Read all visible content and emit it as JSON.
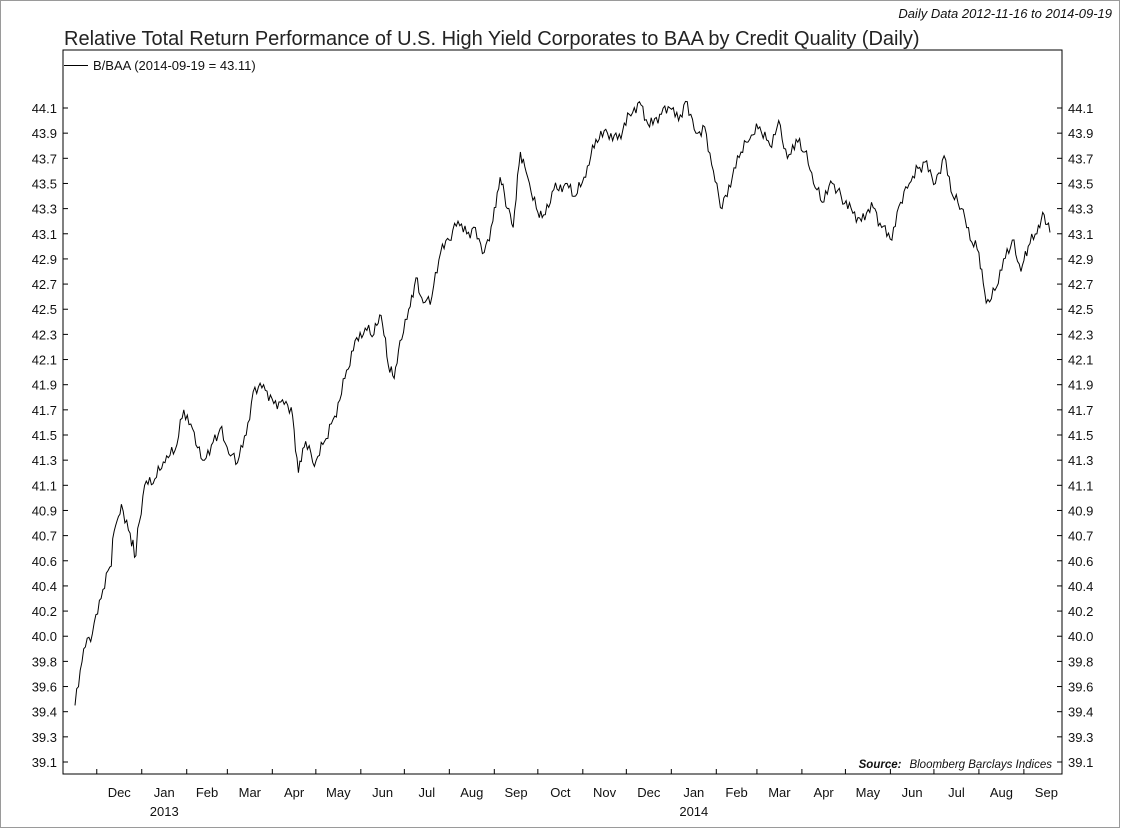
{
  "header": {
    "subtitle": "Daily Data 2012-11-16 to 2014-09-19",
    "title": "Relative Total Return Performance of U.S. High Yield Corporates to BAA by Credit Quality (Daily)"
  },
  "legend": {
    "label": "B/BAA (2014-09-19 = 43.11)"
  },
  "source": {
    "label": "Source:",
    "text": "Bloomberg Barclays Indices"
  },
  "chart_data": {
    "type": "line",
    "title": "Relative Total Return Performance of U.S. High Yield Corporates to BAA by Credit Quality (Daily)",
    "x_range": [
      "2012-11-16",
      "2014-09-19"
    ],
    "ylim": [
      39.05,
      44.25
    ],
    "y_ticks": [
      "44.1",
      "43.9",
      "43.7",
      "43.5",
      "43.3",
      "43.1",
      "42.9",
      "42.7",
      "42.5",
      "42.3",
      "42.1",
      "41.9",
      "41.7",
      "41.5",
      "41.3",
      "41.1",
      "40.9",
      "40.7",
      "40.6",
      "40.4",
      "40.2",
      "40.0",
      "39.8",
      "39.6",
      "39.4",
      "39.3",
      "39.1"
    ],
    "x_ticks": [
      {
        "label": "Dec",
        "date": "2012-12-01"
      },
      {
        "label": "Jan",
        "date": "2013-01-01"
      },
      {
        "label": "Feb",
        "date": "2013-02-01"
      },
      {
        "label": "Mar",
        "date": "2013-03-01"
      },
      {
        "label": "Apr",
        "date": "2013-04-01"
      },
      {
        "label": "May",
        "date": "2013-05-01"
      },
      {
        "label": "Jun",
        "date": "2013-06-01"
      },
      {
        "label": "Jul",
        "date": "2013-07-01"
      },
      {
        "label": "Aug",
        "date": "2013-08-01"
      },
      {
        "label": "Sep",
        "date": "2013-09-01"
      },
      {
        "label": "Oct",
        "date": "2013-10-01"
      },
      {
        "label": "Nov",
        "date": "2013-11-01"
      },
      {
        "label": "Dec",
        "date": "2013-12-01"
      },
      {
        "label": "Jan",
        "date": "2014-01-01"
      },
      {
        "label": "Feb",
        "date": "2014-02-01"
      },
      {
        "label": "Mar",
        "date": "2014-03-01"
      },
      {
        "label": "Apr",
        "date": "2014-04-01"
      },
      {
        "label": "May",
        "date": "2014-05-01"
      },
      {
        "label": "Jun",
        "date": "2014-06-01"
      },
      {
        "label": "Jul",
        "date": "2014-07-01"
      },
      {
        "label": "Aug",
        "date": "2014-08-01"
      },
      {
        "label": "Sep",
        "date": "2014-09-01"
      }
    ],
    "year_labels": [
      {
        "label": "2013",
        "date": "2013-01-01"
      },
      {
        "label": "2014",
        "date": "2014-01-01"
      }
    ],
    "grid": false,
    "legend_position": "top-left",
    "series": [
      {
        "name": "B/BAA (2014-09-19 = 43.11)",
        "color": "#000000",
        "points": [
          [
            "2012-11-16",
            39.45
          ],
          [
            "2012-11-22",
            39.9
          ],
          [
            "2012-11-28",
            40.02
          ],
          [
            "2012-12-04",
            40.3
          ],
          [
            "2012-12-10",
            40.55
          ],
          [
            "2012-12-14",
            40.78
          ],
          [
            "2012-12-18",
            40.95
          ],
          [
            "2012-12-24",
            40.72
          ],
          [
            "2012-12-28",
            40.62
          ],
          [
            "2013-01-03",
            41.1
          ],
          [
            "2013-01-10",
            41.15
          ],
          [
            "2013-01-17",
            41.28
          ],
          [
            "2013-01-24",
            41.38
          ],
          [
            "2013-01-30",
            41.7
          ],
          [
            "2013-02-05",
            41.55
          ],
          [
            "2013-02-12",
            41.3
          ],
          [
            "2013-02-18",
            41.42
          ],
          [
            "2013-02-24",
            41.55
          ],
          [
            "2013-03-02",
            41.35
          ],
          [
            "2013-03-08",
            41.28
          ],
          [
            "2013-03-14",
            41.5
          ],
          [
            "2013-03-20",
            41.88
          ],
          [
            "2013-03-26",
            41.9
          ],
          [
            "2013-04-02",
            41.75
          ],
          [
            "2013-04-08",
            41.78
          ],
          [
            "2013-04-14",
            41.72
          ],
          [
            "2013-04-19",
            41.2
          ],
          [
            "2013-04-24",
            41.45
          ],
          [
            "2013-04-30",
            41.25
          ],
          [
            "2013-05-07",
            41.45
          ],
          [
            "2013-05-14",
            41.65
          ],
          [
            "2013-05-21",
            41.95
          ],
          [
            "2013-05-28",
            42.25
          ],
          [
            "2013-06-04",
            42.35
          ],
          [
            "2013-06-10",
            42.3
          ],
          [
            "2013-06-15",
            42.45
          ],
          [
            "2013-06-20",
            42.05
          ],
          [
            "2013-06-24",
            41.95
          ],
          [
            "2013-06-28",
            42.25
          ],
          [
            "2013-07-04",
            42.5
          ],
          [
            "2013-07-09",
            42.75
          ],
          [
            "2013-07-14",
            42.55
          ],
          [
            "2013-07-20",
            42.6
          ],
          [
            "2013-07-26",
            42.95
          ],
          [
            "2013-08-01",
            43.05
          ],
          [
            "2013-08-07",
            43.2
          ],
          [
            "2013-08-13",
            43.1
          ],
          [
            "2013-08-19",
            43.15
          ],
          [
            "2013-08-25",
            42.95
          ],
          [
            "2013-08-31",
            43.2
          ],
          [
            "2013-09-05",
            43.55
          ],
          [
            "2013-09-10",
            43.3
          ],
          [
            "2013-09-14",
            43.15
          ],
          [
            "2013-09-19",
            43.75
          ],
          [
            "2013-09-24",
            43.55
          ],
          [
            "2013-09-30",
            43.3
          ],
          [
            "2013-10-05",
            43.25
          ],
          [
            "2013-10-12",
            43.45
          ],
          [
            "2013-10-20",
            43.5
          ],
          [
            "2013-10-27",
            43.4
          ],
          [
            "2013-11-03",
            43.55
          ],
          [
            "2013-11-10",
            43.85
          ],
          [
            "2013-11-18",
            43.9
          ],
          [
            "2013-11-25",
            43.85
          ],
          [
            "2013-12-03",
            44.05
          ],
          [
            "2013-12-10",
            44.15
          ],
          [
            "2013-12-17",
            43.95
          ],
          [
            "2013-12-24",
            44.05
          ],
          [
            "2013-12-31",
            44.1
          ],
          [
            "2014-01-06",
            44.0
          ],
          [
            "2014-01-12",
            44.15
          ],
          [
            "2014-01-18",
            43.9
          ],
          [
            "2014-01-24",
            43.95
          ],
          [
            "2014-01-30",
            43.6
          ],
          [
            "2014-02-05",
            43.3
          ],
          [
            "2014-02-12",
            43.55
          ],
          [
            "2014-02-18",
            43.75
          ],
          [
            "2014-02-24",
            43.85
          ],
          [
            "2014-03-03",
            43.95
          ],
          [
            "2014-03-10",
            43.8
          ],
          [
            "2014-03-16",
            44.0
          ],
          [
            "2014-03-22",
            43.7
          ],
          [
            "2014-03-28",
            43.85
          ],
          [
            "2014-04-03",
            43.75
          ],
          [
            "2014-04-09",
            43.5
          ],
          [
            "2014-04-15",
            43.35
          ],
          [
            "2014-04-22",
            43.5
          ],
          [
            "2014-04-28",
            43.4
          ],
          [
            "2014-05-05",
            43.3
          ],
          [
            "2014-05-12",
            43.2
          ],
          [
            "2014-05-19",
            43.35
          ],
          [
            "2014-05-26",
            43.15
          ],
          [
            "2014-06-02",
            43.05
          ],
          [
            "2014-06-08",
            43.35
          ],
          [
            "2014-06-14",
            43.5
          ],
          [
            "2014-06-20",
            43.62
          ],
          [
            "2014-06-26",
            43.68
          ],
          [
            "2014-07-02",
            43.5
          ],
          [
            "2014-07-08",
            43.72
          ],
          [
            "2014-07-14",
            43.4
          ],
          [
            "2014-07-20",
            43.3
          ],
          [
            "2014-07-26",
            43.05
          ],
          [
            "2014-08-01",
            42.95
          ],
          [
            "2014-08-06",
            42.55
          ],
          [
            "2014-08-12",
            42.65
          ],
          [
            "2014-08-18",
            42.9
          ],
          [
            "2014-08-24",
            43.05
          ],
          [
            "2014-08-30",
            42.8
          ],
          [
            "2014-09-04",
            43.0
          ],
          [
            "2014-09-10",
            43.1
          ],
          [
            "2014-09-15",
            43.25
          ],
          [
            "2014-09-19",
            43.11
          ]
        ]
      }
    ]
  }
}
